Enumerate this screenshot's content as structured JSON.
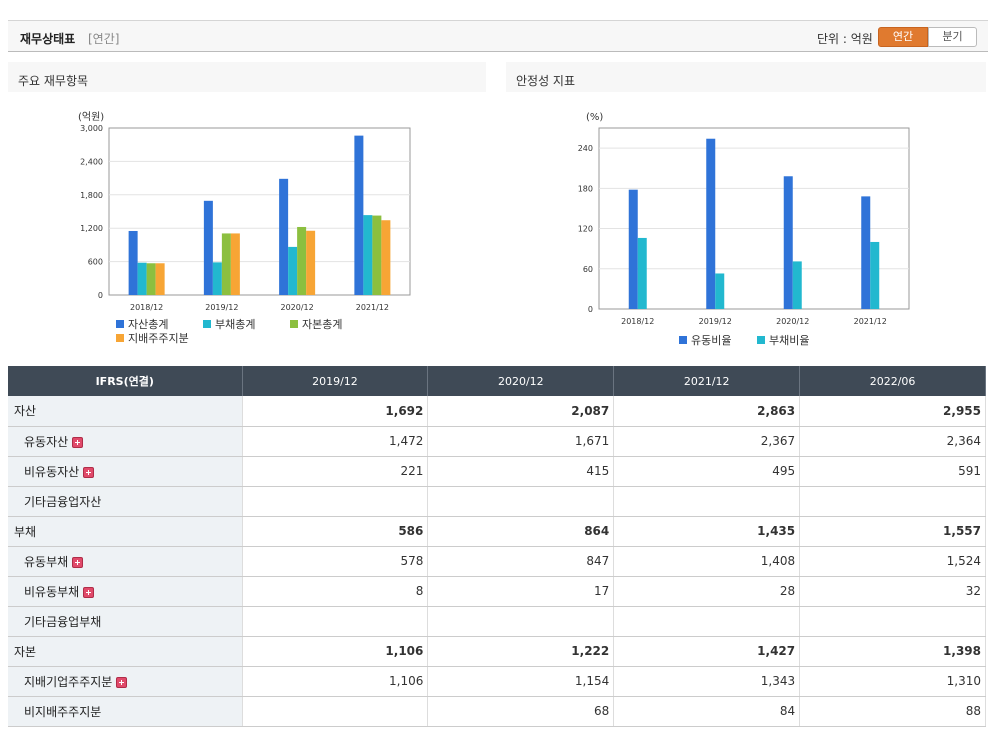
{
  "header": {
    "title": "재무상태표",
    "sub": "[연간]",
    "unit": "단위 : 억원",
    "seg_on": "연간",
    "seg_off": "분기"
  },
  "panels": {
    "left_title": "주요 재무항목",
    "right_title": "안정성 지표"
  },
  "chart_data": [
    {
      "type": "bar",
      "unit_label": "(억원)",
      "categories": [
        "2018/12",
        "2019/12",
        "2020/12",
        "2021/12"
      ],
      "ylim": [
        0,
        3000
      ],
      "yticks": [
        0,
        600,
        1200,
        1800,
        2400,
        3000
      ],
      "grid": true,
      "legend_position": "bottom",
      "series": [
        {
          "name": "자산총계",
          "color": "#2f73d8",
          "values": [
            1150,
            1692,
            2087,
            2863
          ]
        },
        {
          "name": "부채총계",
          "color": "#22b8cf",
          "values": [
            580,
            586,
            864,
            1435
          ]
        },
        {
          "name": "자본총계",
          "color": "#8cbf3f",
          "values": [
            570,
            1106,
            1222,
            1427
          ]
        },
        {
          "name": "지배주주지분",
          "color": "#f7a535",
          "values": [
            570,
            1106,
            1154,
            1343
          ]
        }
      ]
    },
    {
      "type": "bar",
      "unit_label": "(%)",
      "categories": [
        "2018/12",
        "2019/12",
        "2020/12",
        "2021/12"
      ],
      "ylim": [
        0,
        270
      ],
      "yticks": [
        0,
        60,
        120,
        180,
        240
      ],
      "grid": true,
      "legend_position": "bottom",
      "series": [
        {
          "name": "유동비율",
          "color": "#2f73d8",
          "values": [
            178,
            254,
            198,
            168
          ]
        },
        {
          "name": "부채비율",
          "color": "#22b8cf",
          "values": [
            106,
            53,
            71,
            100
          ]
        }
      ]
    }
  ],
  "table": {
    "headers": [
      "IFRS(연결)",
      "2019/12",
      "2020/12",
      "2021/12",
      "2022/06"
    ],
    "rows": [
      {
        "label": "자산",
        "bold": true,
        "indent": false,
        "plus": false,
        "values": [
          "1,692",
          "2,087",
          "2,863",
          "2,955"
        ]
      },
      {
        "label": "유동자산",
        "bold": false,
        "indent": true,
        "plus": true,
        "values": [
          "1,472",
          "1,671",
          "2,367",
          "2,364"
        ]
      },
      {
        "label": "비유동자산",
        "bold": false,
        "indent": true,
        "plus": true,
        "values": [
          "221",
          "415",
          "495",
          "591"
        ]
      },
      {
        "label": "기타금융업자산",
        "bold": false,
        "indent": true,
        "plus": false,
        "values": [
          "",
          "",
          "",
          ""
        ]
      },
      {
        "label": "부채",
        "bold": true,
        "indent": false,
        "plus": false,
        "values": [
          "586",
          "864",
          "1,435",
          "1,557"
        ]
      },
      {
        "label": "유동부채",
        "bold": false,
        "indent": true,
        "plus": true,
        "values": [
          "578",
          "847",
          "1,408",
          "1,524"
        ]
      },
      {
        "label": "비유동부채",
        "bold": false,
        "indent": true,
        "plus": true,
        "values": [
          "8",
          "17",
          "28",
          "32"
        ]
      },
      {
        "label": "기타금융업부채",
        "bold": false,
        "indent": true,
        "plus": false,
        "values": [
          "",
          "",
          "",
          ""
        ]
      },
      {
        "label": "자본",
        "bold": true,
        "indent": false,
        "plus": false,
        "values": [
          "1,106",
          "1,222",
          "1,427",
          "1,398"
        ]
      },
      {
        "label": "지배기업주주지분",
        "bold": false,
        "indent": true,
        "plus": true,
        "values": [
          "1,106",
          "1,154",
          "1,343",
          "1,310"
        ]
      },
      {
        "label": "비지배주주지분",
        "bold": false,
        "indent": true,
        "plus": false,
        "values": [
          "",
          "68",
          "84",
          "88"
        ]
      }
    ]
  }
}
